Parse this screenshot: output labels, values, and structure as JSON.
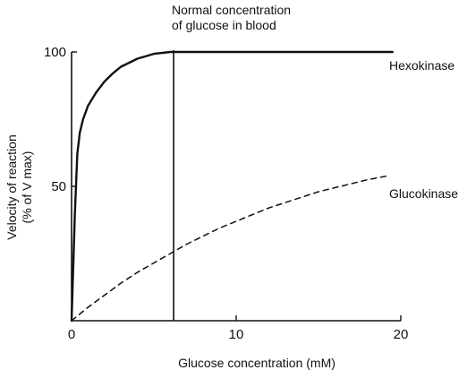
{
  "chart_data": {
    "type": "line",
    "xlabel": "Glucose concentration  (mM)",
    "ylabel": [
      "Velocity of reaction",
      "(% of V max)"
    ],
    "xlim": [
      0,
      20
    ],
    "ylim": [
      0,
      100
    ],
    "x_ticks": [
      {
        "value": 0,
        "label": "0"
      },
      {
        "value": 10,
        "label": "10"
      },
      {
        "value": 20,
        "label": "20"
      }
    ],
    "y_ticks": [
      {
        "value": 50,
        "label": "50"
      },
      {
        "value": 100,
        "label": "100"
      }
    ],
    "grid": false,
    "legend": "labels at right end of each curve",
    "series": [
      {
        "name": "Hexokinase",
        "style": "solid",
        "color": "#111111",
        "x": [
          0,
          0.2,
          0.35,
          0.5,
          0.7,
          1.0,
          1.5,
          2.0,
          2.5,
          3.0,
          4.0,
          5.0,
          6.0,
          7.0,
          10.0,
          15.0,
          19.5
        ],
        "y": [
          0,
          40,
          62,
          70,
          75,
          80,
          85,
          89,
          92,
          94.5,
          97.5,
          99.3,
          100,
          100,
          100,
          100,
          100
        ]
      },
      {
        "name": "Glucokinase",
        "style": "dashed",
        "color": "#111111",
        "x": [
          0,
          1,
          2,
          3,
          4,
          5,
          6,
          7,
          8,
          9,
          10,
          11,
          12,
          13,
          14,
          15,
          16,
          17,
          18,
          19.3
        ],
        "y": [
          0,
          5,
          9.5,
          14,
          18,
          21.5,
          25,
          28.5,
          31.5,
          34.5,
          37,
          39.5,
          42,
          44,
          46,
          48,
          49.5,
          51,
          52.5,
          54
        ]
      }
    ],
    "annotation": {
      "vertical_line_x": 6.2,
      "lines": [
        "Normal concentration",
        "of glucose in blood"
      ]
    }
  }
}
